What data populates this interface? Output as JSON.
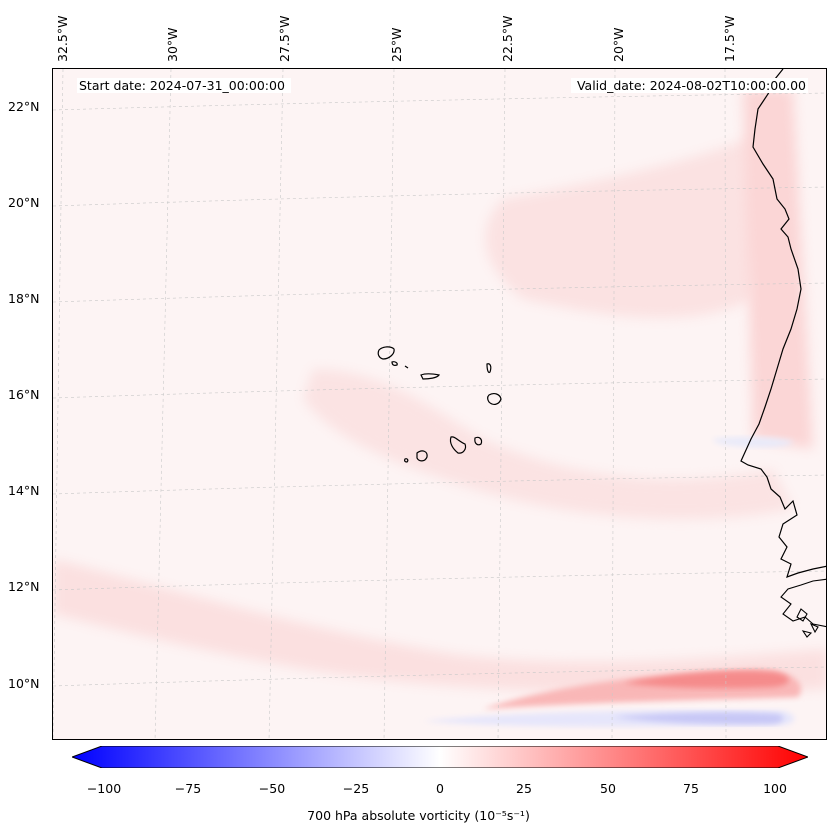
{
  "map": {
    "header": {
      "start_date": "Start date: 2024-07-31_00:00:00",
      "valid_date": "Valid_date: 2024-08-02T10:00:00.00"
    },
    "longitude_labels": [
      "32.5°W",
      "30°W",
      "27.5°W",
      "25°W",
      "22.5°W",
      "20°W",
      "17.5°W"
    ],
    "latitude_labels": [
      "22°N",
      "20°N",
      "18°N",
      "16°N",
      "14°N",
      "12°N",
      "10°N"
    ],
    "features": [
      "Cape Verde islands",
      "West African coastline"
    ],
    "colors": {
      "negative": "#0000ff",
      "zero": "#ffffff",
      "positive": "#ff0000",
      "background_tint": "#fdf4f4"
    }
  },
  "colorbar": {
    "ticks": [
      "−100",
      "−75",
      "−50",
      "−25",
      "0",
      "25",
      "50",
      "75",
      "100"
    ],
    "tick_values": [
      -100,
      -75,
      -50,
      -25,
      0,
      25,
      50,
      75,
      100
    ],
    "label": "700 hPa absolute vorticity (10⁻⁵s⁻¹)",
    "range": [
      -100,
      100
    ]
  }
}
